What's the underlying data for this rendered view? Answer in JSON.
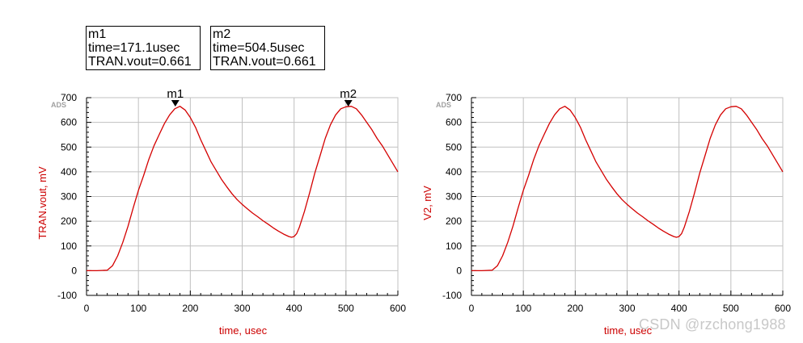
{
  "markers": [
    {
      "name": "m1",
      "time_label": "time=171.1usec",
      "value_label": "TRAN.vout=0.661",
      "x": 171.1,
      "y": 661
    },
    {
      "name": "m2",
      "time_label": "time=504.5usec",
      "value_label": "TRAN.vout=0.661",
      "x": 504.5,
      "y": 661
    }
  ],
  "watermark": "CSDN @rzchong1988",
  "colors": {
    "trace": "#d40000",
    "axis_label": "#cc0000",
    "grid": "#c0c0c0",
    "axis": "#000000",
    "badge": "#a0a0a0"
  },
  "chart_data": [
    {
      "type": "line",
      "badge": "ADS",
      "xlabel": "time, usec",
      "ylabel": "TRAN.vout, mV",
      "xlim": [
        0,
        600
      ],
      "ylim": [
        -100,
        700
      ],
      "xticks": [
        0,
        100,
        200,
        300,
        400,
        500,
        600
      ],
      "yticks": [
        -100,
        0,
        100,
        200,
        300,
        400,
        500,
        600,
        700
      ],
      "grid": true,
      "markers": [
        "m1",
        "m2"
      ],
      "series": [
        {
          "x": [
            0,
            20,
            40,
            50,
            60,
            70,
            80,
            90,
            100,
            110,
            120,
            130,
            140,
            150,
            160,
            170,
            180,
            190,
            200,
            210,
            220,
            230,
            240,
            250,
            260,
            270,
            280,
            290,
            300,
            310,
            320,
            330,
            340,
            350,
            360,
            370,
            380,
            390,
            395,
            400,
            405,
            410,
            420,
            430,
            440,
            450,
            460,
            470,
            480,
            490,
            500,
            510,
            520,
            530,
            540,
            550,
            560,
            570,
            580,
            590,
            600
          ],
          "y": [
            0,
            0,
            2,
            20,
            60,
            115,
            180,
            255,
            325,
            385,
            450,
            505,
            550,
            595,
            630,
            655,
            665,
            650,
            620,
            580,
            530,
            485,
            440,
            405,
            370,
            340,
            312,
            288,
            268,
            250,
            233,
            218,
            202,
            188,
            173,
            160,
            148,
            138,
            135,
            138,
            150,
            175,
            240,
            315,
            395,
            465,
            535,
            590,
            630,
            655,
            663,
            665,
            655,
            630,
            600,
            570,
            535,
            505,
            470,
            435,
            400
          ]
        }
      ]
    },
    {
      "type": "line",
      "badge": "ADS",
      "xlabel": "time, usec",
      "ylabel": "V2, mV",
      "xlim": [
        0,
        600
      ],
      "ylim": [
        -100,
        700
      ],
      "xticks": [
        0,
        100,
        200,
        300,
        400,
        500,
        600
      ],
      "yticks": [
        -100,
        0,
        100,
        200,
        300,
        400,
        500,
        600,
        700
      ],
      "grid": true,
      "markers": [],
      "series": [
        {
          "x": [
            0,
            20,
            40,
            50,
            60,
            70,
            80,
            90,
            100,
            110,
            120,
            130,
            140,
            150,
            160,
            170,
            180,
            190,
            200,
            210,
            220,
            230,
            240,
            250,
            260,
            270,
            280,
            290,
            300,
            310,
            320,
            330,
            340,
            350,
            360,
            370,
            380,
            390,
            395,
            400,
            405,
            410,
            420,
            430,
            440,
            450,
            460,
            470,
            480,
            490,
            500,
            510,
            520,
            530,
            540,
            550,
            560,
            570,
            580,
            590,
            600
          ],
          "y": [
            0,
            0,
            2,
            20,
            60,
            115,
            180,
            255,
            325,
            385,
            450,
            505,
            550,
            595,
            630,
            655,
            665,
            650,
            620,
            580,
            530,
            485,
            440,
            405,
            370,
            340,
            312,
            288,
            268,
            250,
            233,
            218,
            202,
            188,
            173,
            160,
            148,
            138,
            135,
            138,
            150,
            175,
            240,
            315,
            395,
            465,
            535,
            590,
            630,
            655,
            663,
            665,
            655,
            630,
            600,
            570,
            535,
            505,
            470,
            435,
            400
          ]
        }
      ]
    }
  ]
}
